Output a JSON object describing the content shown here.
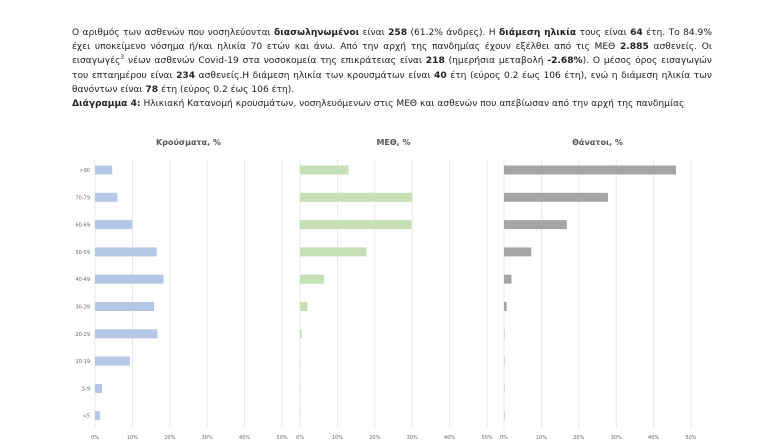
{
  "paragraph": {
    "s1": "Ο αριθμός των ασθενών που νοσηλεύονται ",
    "b1": "διασωληνωμένοι",
    "s2": " είναι ",
    "b2": "258",
    "s3": " (61.2% άνδρες).  Η ",
    "b3": "διάμεση ηλικία",
    "s4": " τους είναι ",
    "b4": "64",
    "s5": " έτη.  Το 84.9% έχει υποκείμενο νόσημα ή/και ηλικία 70 ετών και άνω. Από την αρχή της πανδημίας έχουν εξέλθει από τις ΜΕΘ ",
    "b5": "2.885",
    "s6": " ασθενείς. Οι εισαγωγές",
    "sup": "3",
    "s7": " νέων ασθενών Covid-19 στα νοσοκομεία της επικράτειας είναι ",
    "b6": "218",
    "s8": " (ημερήσια μεταβολή ",
    "b7": "-2.68%",
    "s9": "). Ο μέσος όρος εισαγωγών του επταημέρου είναι ",
    "b8": "234",
    "s10": " ασθενείς.Η διάμεση ηλικία των κρουσμάτων είναι ",
    "b9": "40",
    "s11": " έτη (εύρος 0.2 έως 106 έτη), ενώ η διάμεση ηλικία των θανόντων είναι ",
    "b10": "78",
    "s12": " έτη (εύρος 0.2 έως 106 έτη)."
  },
  "caption": {
    "label": "Διάγραμμα 4:",
    "text": " Ηλικιακή Κατανομή κρουσμάτων, νοσηλευόμενων στις ΜΕΘ και ασθενών που απεβίωσαν από την αρχή της πανδημίας"
  },
  "chart_data": [
    {
      "type": "bar",
      "orientation": "horizontal",
      "title": "Κρούσματα, %",
      "categories": [
        ">90",
        "70-79",
        "60-69",
        "50-59",
        "40-49",
        "30-39",
        "20-29",
        "10-19",
        "5-9",
        "<5"
      ],
      "values": [
        4.6,
        6.0,
        10.0,
        16.5,
        18.3,
        15.8,
        16.7,
        9.3,
        1.9,
        1.3
      ],
      "xlim": [
        0,
        50
      ],
      "xticks": [
        "0%",
        "10%",
        "20%",
        "30%",
        "40%",
        "50%"
      ],
      "color": "#b4c7e7",
      "grid": true
    },
    {
      "type": "bar",
      "orientation": "horizontal",
      "title": "ΜΕΘ, %",
      "categories": [
        ">90",
        "70-79",
        "60-69",
        "50-59",
        "40-49",
        "30-39",
        "20-29",
        "10-19",
        "5-9",
        "<5"
      ],
      "values": [
        13.0,
        30.0,
        29.8,
        17.8,
        6.4,
        2.0,
        0.5,
        0.1,
        0,
        0
      ],
      "xlim": [
        0,
        50
      ],
      "xticks": [
        "0%",
        "10%",
        "20%",
        "30%",
        "40%",
        "50%"
      ],
      "color": "#c5e0b4",
      "grid": true
    },
    {
      "type": "bar",
      "orientation": "horizontal",
      "title": "Θάνατοι, %",
      "categories": [
        ">90",
        "70-79",
        "60-69",
        "50-59",
        "40-49",
        "30-39",
        "20-29",
        "10-19",
        "5-9",
        "<5"
      ],
      "values": [
        46.0,
        27.8,
        16.8,
        7.3,
        2.0,
        0.7,
        0.1,
        0.05,
        0,
        0
      ],
      "xlim": [
        0,
        50
      ],
      "xticks": [
        "0%",
        "10%",
        "20%",
        "30%",
        "40%",
        "50%"
      ],
      "color": "#a5a5a5",
      "grid": true
    }
  ]
}
